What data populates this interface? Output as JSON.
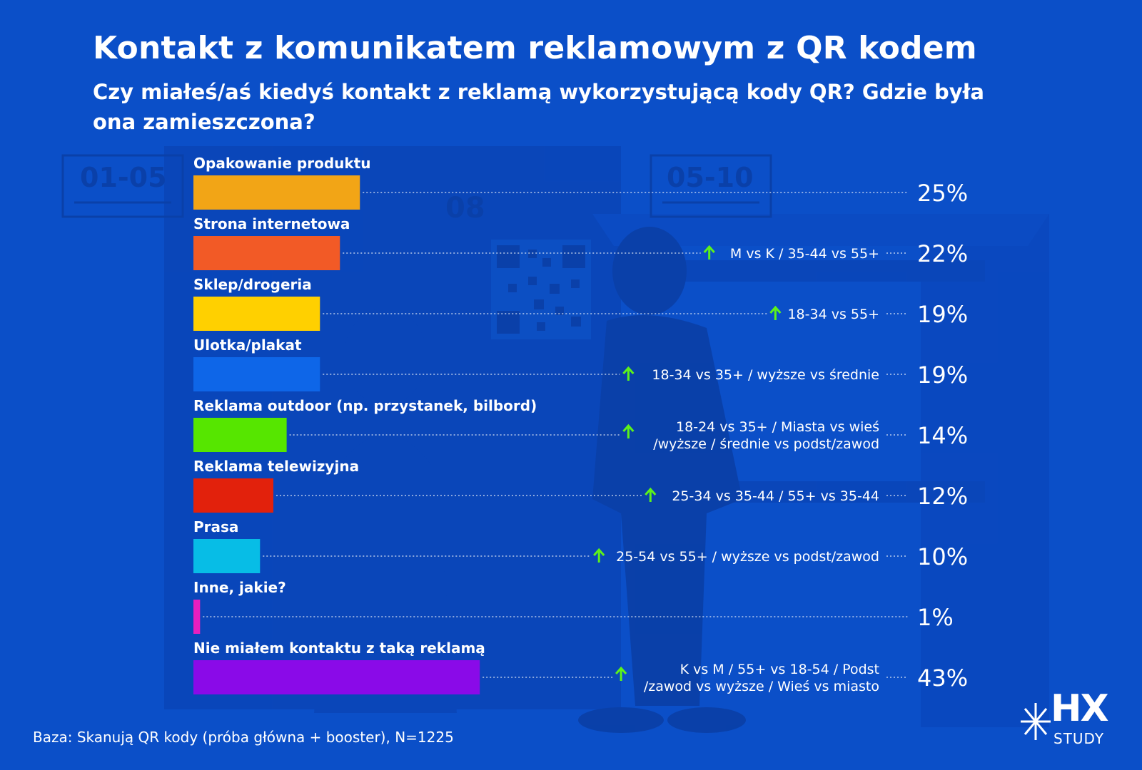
{
  "page": {
    "title": "Kontakt z komunikatem reklamowym z QR kodem",
    "subtitle": "Czy miałeś/aś kiedyś kontakt z reklamą wykorzystującą kody QR? Gdzie była ona zamieszczona?",
    "footer": "Baza: Skanują QR kody (próba główna + booster), N=1225",
    "background_signs": [
      "01-05",
      "05-10",
      "08"
    ],
    "logo": {
      "mark": "HX",
      "word": "STUDY"
    }
  },
  "chart_data": {
    "type": "bar",
    "orientation": "horizontal",
    "title": "Kontakt z komunikatem reklamowym z QR kodem",
    "unit": "%",
    "xlim": [
      0,
      100
    ],
    "categories": [
      "Opakowanie produktu",
      "Strona internetowa",
      "Sklep/drogeria",
      "Ulotka/plakat",
      "Reklama outdoor (np. przystanek, bilbord)",
      "Reklama telewizyjna",
      "Prasa",
      "Inne, jakie?",
      "Nie miałem kontaktu z taką reklamą"
    ],
    "values": [
      25,
      22,
      19,
      19,
      14,
      12,
      10,
      1,
      43
    ],
    "value_labels": [
      "25%",
      "22%",
      "19%",
      "19%",
      "14%",
      "12%",
      "10%",
      "1%",
      "43%"
    ],
    "colors": [
      "#f2a516",
      "#f25a26",
      "#ffd000",
      "#0e66e8",
      "#56e600",
      "#e2210c",
      "#07bde6",
      "#e61fbf",
      "#8a0ae8"
    ],
    "annotations": [
      [],
      [
        "M vs K / 35-44 vs 55+"
      ],
      [
        "18-34 vs 55+"
      ],
      [
        "18-34 vs 35+ / wyższe vs średnie"
      ],
      [
        "18-24 vs 35+ / Miasta vs wieś",
        "/wyższe / średnie vs podst/zawod"
      ],
      [
        "25-34 vs 35-44 / 55+ vs 35-44"
      ],
      [
        "25-54 vs 55+ / wyższe vs podst/zawod"
      ],
      [],
      [
        "K vs M / 55+ vs 18-54 / Podst",
        "/zawod vs wyższe / Wieś vs miasto"
      ]
    ],
    "annotation_marker_color": "#5df21a",
    "grid": false,
    "legend": "none"
  }
}
